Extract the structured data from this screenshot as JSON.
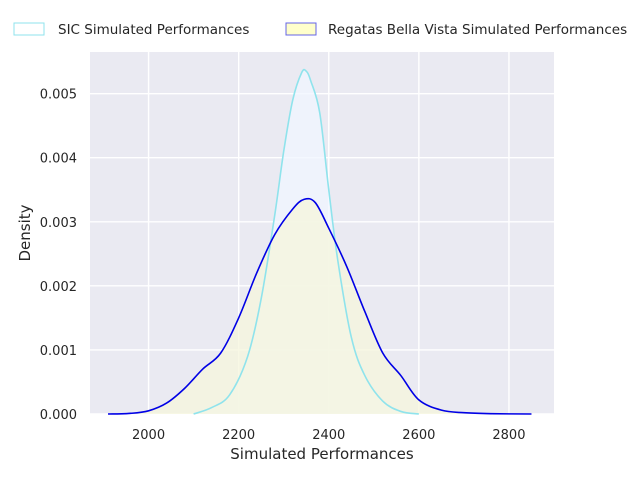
{
  "chart_data": {
    "type": "area",
    "title": "",
    "xlabel": "Simulated Performances",
    "ylabel": "Density",
    "xlim": [
      1870,
      2900
    ],
    "ylim": [
      0,
      0.00565
    ],
    "x_ticks": [
      2000,
      2200,
      2400,
      2600,
      2800
    ],
    "y_ticks": [
      0.0,
      0.001,
      0.002,
      0.003,
      0.004,
      0.005
    ],
    "x_tick_labels": [
      "2000",
      "2200",
      "2400",
      "2600",
      "2800"
    ],
    "y_tick_labels": [
      "0.000",
      "0.001",
      "0.002",
      "0.003",
      "0.004",
      "0.005"
    ],
    "grid": true,
    "legend_position": "top",
    "series": [
      {
        "name": "SIC Simulated Performances",
        "line_color": "#8fe3ec",
        "fill_color": "#f0f5ff",
        "x": [
          2100,
          2140,
          2180,
          2220,
          2250,
          2280,
          2300,
          2320,
          2340,
          2350,
          2360,
          2380,
          2400,
          2420,
          2450,
          2480,
          2520,
          2560,
          2600
        ],
        "y": [
          0.0,
          0.0001,
          0.0003,
          0.0009,
          0.0018,
          0.0031,
          0.0041,
          0.0049,
          0.00533,
          0.00535,
          0.0052,
          0.0047,
          0.0035,
          0.0024,
          0.0012,
          0.0006,
          0.0002,
          4e-05,
          0.0
        ]
      },
      {
        "name": "Regatas Bella Vista Simulated Performances",
        "line_color": "#0000e6",
        "fill_color": "#f5f5dc",
        "x": [
          1910,
          1960,
          2000,
          2040,
          2080,
          2120,
          2160,
          2200,
          2240,
          2280,
          2320,
          2345,
          2370,
          2400,
          2440,
          2480,
          2520,
          2560,
          2600,
          2650,
          2700,
          2760,
          2850
        ],
        "y": [
          0.0,
          1e-05,
          5e-05,
          0.00017,
          0.0004,
          0.0007,
          0.00095,
          0.0015,
          0.0022,
          0.0028,
          0.0032,
          0.00335,
          0.0033,
          0.0029,
          0.0023,
          0.0016,
          0.00095,
          0.0006,
          0.00022,
          6e-05,
          2e-05,
          5e-06,
          0.0
        ]
      }
    ]
  }
}
